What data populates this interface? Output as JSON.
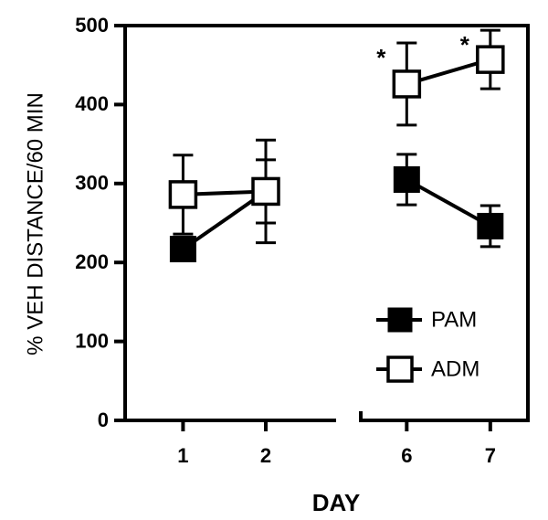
{
  "chart_data": {
    "type": "line",
    "x_label": "DAY",
    "y_label": "% VEH DISTANCE/60 MIN",
    "categories": [
      "1",
      "2",
      "6",
      "7"
    ],
    "x_break_after": 1,
    "series": [
      {
        "name": "PAM",
        "color": "#000000",
        "marker": "filled-square",
        "values": [
          217,
          290,
          305,
          246
        ],
        "errors": [
          15,
          40,
          32,
          26
        ]
      },
      {
        "name": "ADM",
        "color": "#000000",
        "marker": "open-square",
        "values": [
          286,
          290,
          426,
          457
        ],
        "errors": [
          50,
          65,
          52,
          37
        ]
      }
    ],
    "annotations": [
      {
        "text": "*",
        "x": "6"
      },
      {
        "text": "*",
        "x": "7"
      }
    ],
    "ylim": [
      0,
      500
    ],
    "yticks": [
      0,
      100,
      200,
      300,
      400,
      500
    ],
    "grid": false,
    "legend": "lower right"
  }
}
